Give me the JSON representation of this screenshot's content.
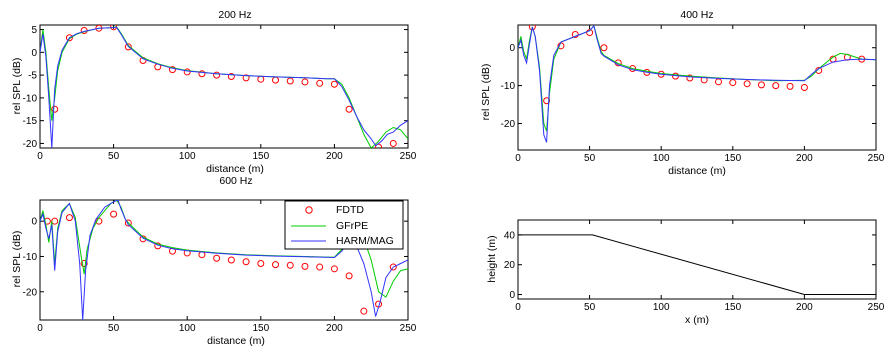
{
  "chart_data": [
    {
      "type": "line",
      "title": "200 Hz",
      "xlabel": "distance (m)",
      "ylabel": "rel SPL (dB)",
      "xlim": [
        0,
        250
      ],
      "ylim": [
        -21,
        6
      ],
      "xticks": [
        0,
        50,
        100,
        150,
        200,
        250
      ],
      "yticks": [
        5,
        0,
        -5,
        -10,
        -15,
        -20
      ],
      "series": [
        {
          "name": "FDTD",
          "style": "circles",
          "color": "#ff0000",
          "x": [
            10,
            20,
            30,
            40,
            50,
            60,
            70,
            80,
            90,
            100,
            110,
            120,
            130,
            140,
            150,
            160,
            170,
            180,
            190,
            200,
            210,
            230,
            240
          ],
          "y": [
            -12.5,
            3.2,
            4.8,
            5.3,
            5.6,
            1.2,
            -1.8,
            -3.2,
            -3.8,
            -4.3,
            -4.7,
            -5.0,
            -5.3,
            -5.6,
            -5.9,
            -6.1,
            -6.3,
            -6.5,
            -6.8,
            -7.0,
            -12.5,
            -20.8,
            -20.0
          ]
        },
        {
          "name": "GFrPE",
          "style": "line",
          "color": "#00cc00",
          "x": [
            0,
            2,
            4,
            6,
            8,
            10,
            12,
            15,
            20,
            25,
            30,
            40,
            48,
            52,
            55,
            60,
            70,
            80,
            90,
            100,
            120,
            140,
            160,
            180,
            195,
            200,
            205,
            210,
            215,
            220,
            225,
            230,
            235,
            240,
            245,
            250
          ],
          "y": [
            0,
            5,
            0,
            -8,
            -15,
            -10,
            -4,
            0,
            3,
            4,
            4.5,
            5.3,
            5.4,
            5.6,
            4.2,
            1.5,
            -1.2,
            -2.5,
            -3.4,
            -4.0,
            -4.7,
            -5.1,
            -5.4,
            -5.6,
            -5.8,
            -5.8,
            -7,
            -10,
            -14,
            -18,
            -21,
            -19.5,
            -17.5,
            -16.5,
            -17,
            -19
          ]
        },
        {
          "name": "HARM/MAG",
          "style": "line",
          "color": "#3333ff",
          "x": [
            0,
            2,
            4,
            6,
            8,
            10,
            12,
            15,
            20,
            25,
            30,
            40,
            48,
            52,
            55,
            60,
            70,
            80,
            90,
            100,
            120,
            140,
            160,
            180,
            195,
            200,
            205,
            210,
            215,
            220,
            225,
            228,
            232,
            236,
            240,
            245,
            250
          ],
          "y": [
            0,
            4,
            -1,
            -10,
            -21,
            -8,
            -3,
            0.5,
            3.2,
            4.1,
            4.6,
            5.3,
            5.4,
            5.5,
            4.0,
            1.3,
            -1.4,
            -2.6,
            -3.5,
            -4.1,
            -4.7,
            -5.1,
            -5.4,
            -5.6,
            -5.8,
            -5.8,
            -7.5,
            -10.5,
            -14,
            -17,
            -19,
            -20.5,
            -19.5,
            -18,
            -17.5,
            -16,
            -15
          ]
        }
      ]
    },
    {
      "type": "line",
      "title": "400 Hz",
      "xlabel": "distance (m)",
      "ylabel": "rel SPL (dB)",
      "xlim": [
        0,
        250
      ],
      "ylim": [
        -27,
        6
      ],
      "xticks": [
        0,
        50,
        100,
        150,
        200,
        250
      ],
      "yticks": [
        0,
        -10,
        -20
      ],
      "series": [
        {
          "name": "FDTD",
          "style": "circles",
          "color": "#ff0000",
          "x": [
            10,
            20,
            30,
            40,
            50,
            60,
            70,
            80,
            90,
            100,
            110,
            120,
            130,
            140,
            150,
            160,
            170,
            180,
            190,
            200,
            210,
            220,
            230,
            240
          ],
          "y": [
            5.5,
            -14.0,
            0.5,
            3.5,
            4.0,
            0.0,
            -4.0,
            -5.5,
            -6.5,
            -7.0,
            -7.5,
            -8.0,
            -8.5,
            -9.0,
            -9.2,
            -9.5,
            -9.8,
            -10.0,
            -10.2,
            -10.5,
            -6.0,
            -3.0,
            -2.5,
            -3.0
          ]
        },
        {
          "name": "GFrPE",
          "style": "line",
          "color": "#00cc00",
          "x": [
            0,
            2,
            4,
            6,
            8,
            10,
            12,
            15,
            18,
            20,
            22,
            25,
            30,
            40,
            50,
            53,
            55,
            58,
            60,
            70,
            80,
            90,
            100,
            120,
            140,
            160,
            180,
            200,
            205,
            210,
            220,
            225,
            230,
            240,
            250
          ],
          "y": [
            0,
            3,
            -1,
            -3,
            2,
            5.5,
            3,
            -5,
            -20,
            -22,
            -12,
            -3,
            1.5,
            3,
            4.5,
            5.8,
            3,
            -1,
            -2,
            -4.2,
            -5.5,
            -6.2,
            -6.8,
            -7.5,
            -8.0,
            -8.4,
            -8.7,
            -8.6,
            -7.5,
            -5.5,
            -2.5,
            -1.5,
            -1.8,
            -3.0,
            -3.2
          ]
        },
        {
          "name": "HARM/MAG",
          "style": "line",
          "color": "#3333ff",
          "x": [
            0,
            2,
            4,
            6,
            8,
            10,
            12,
            15,
            18,
            20,
            22,
            25,
            30,
            40,
            50,
            53,
            55,
            58,
            60,
            70,
            80,
            90,
            100,
            120,
            140,
            160,
            180,
            200,
            205,
            210,
            220,
            230,
            240,
            250
          ],
          "y": [
            0,
            2,
            -2,
            -4,
            1,
            5.5,
            3,
            -6,
            -23,
            -25,
            -10,
            -2,
            1.5,
            3,
            4.5,
            5.8,
            2.5,
            -1.5,
            -2.2,
            -4.5,
            -5.8,
            -6.5,
            -7.0,
            -7.7,
            -8.1,
            -8.4,
            -8.6,
            -8.7,
            -7.0,
            -5.5,
            -3.8,
            -3.2,
            -3.0,
            -3.2
          ]
        }
      ]
    },
    {
      "type": "line",
      "title": "600 Hz",
      "xlabel": "distance (m)",
      "ylabel": "rel SPL (dB)",
      "xlim": [
        0,
        250
      ],
      "ylim": [
        -28,
        6
      ],
      "xticks": [
        0,
        50,
        100,
        150,
        200,
        250
      ],
      "yticks": [
        0,
        -10,
        -20
      ],
      "legend": "inside upper-center",
      "series": [
        {
          "name": "FDTD",
          "style": "circles",
          "color": "#ff0000",
          "x": [
            5,
            10,
            20,
            30,
            40,
            50,
            60,
            70,
            80,
            90,
            100,
            110,
            120,
            130,
            140,
            150,
            160,
            170,
            180,
            190,
            200,
            210,
            220,
            230,
            240
          ],
          "y": [
            0,
            0,
            1,
            -12,
            0,
            2,
            -0.5,
            -5,
            -7,
            -8.5,
            -9,
            -9.5,
            -10.5,
            -11,
            -11.5,
            -12,
            -12.3,
            -12.5,
            -12.8,
            -13,
            -13.5,
            -15.5,
            -25.5,
            -23.5,
            -13
          ]
        },
        {
          "name": "GFrPE",
          "style": "line",
          "color": "#00cc00",
          "x": [
            0,
            2,
            4,
            6,
            8,
            10,
            12,
            15,
            20,
            24,
            28,
            30,
            32,
            36,
            40,
            48,
            52,
            55,
            58,
            60,
            70,
            80,
            90,
            100,
            120,
            140,
            160,
            180,
            200,
            205,
            210,
            215,
            220,
            225,
            230,
            235,
            240,
            245,
            250
          ],
          "y": [
            0,
            3,
            -1,
            -6,
            0,
            -12,
            -2,
            3,
            5,
            1,
            -10,
            -15,
            -8,
            -2,
            1,
            5,
            6,
            4,
            0.5,
            -0.5,
            -4.5,
            -6.5,
            -7.5,
            -8.2,
            -9.0,
            -9.5,
            -9.8,
            -10.0,
            -10.2,
            -8.0,
            -4.5,
            -3.5,
            -5.0,
            -11.0,
            -20.0,
            -21.5,
            -17.0,
            -14.0,
            -13.5
          ]
        },
        {
          "name": "HARM/MAG",
          "style": "line",
          "color": "#3333ff",
          "x": [
            0,
            2,
            4,
            6,
            8,
            10,
            12,
            15,
            20,
            24,
            27,
            29,
            31,
            34,
            38,
            44,
            50,
            53,
            55,
            58,
            60,
            70,
            80,
            90,
            100,
            120,
            140,
            160,
            180,
            200,
            205,
            210,
            215,
            220,
            225,
            228,
            231,
            235,
            240,
            245,
            250
          ],
          "y": [
            0,
            2,
            -2,
            -5,
            -1,
            -14,
            -3,
            2.5,
            5,
            0,
            -12,
            -28,
            -14,
            -4,
            0.5,
            4,
            5.5,
            6,
            3.5,
            0.5,
            -1,
            -4.8,
            -6.8,
            -7.8,
            -8.4,
            -9.1,
            -9.6,
            -9.9,
            -10.1,
            -10.3,
            -8.5,
            -5.5,
            -7.0,
            -12.0,
            -20.0,
            -27.0,
            -23.0,
            -16.0,
            -13.0,
            -12.0,
            -11.0
          ]
        }
      ]
    },
    {
      "type": "line",
      "title": "",
      "xlabel": "x (m)",
      "ylabel": "height (m)",
      "xlim": [
        0,
        250
      ],
      "ylim": [
        -3,
        50
      ],
      "xticks": [
        0,
        50,
        100,
        150,
        200,
        250
      ],
      "yticks": [
        40,
        20,
        0
      ],
      "series": [
        {
          "color": "#000000",
          "style": "line",
          "x": [
            0,
            52,
            200,
            250
          ],
          "y": [
            40,
            40,
            0,
            0
          ]
        }
      ]
    }
  ],
  "legend": {
    "entries": [
      {
        "name": "FDTD",
        "color": "#ff0000",
        "style": "circles"
      },
      {
        "name": "GFrPE",
        "color": "#00cc00",
        "style": "line"
      },
      {
        "name": "HARM/MAG",
        "color": "#3333ff",
        "style": "line"
      }
    ]
  }
}
